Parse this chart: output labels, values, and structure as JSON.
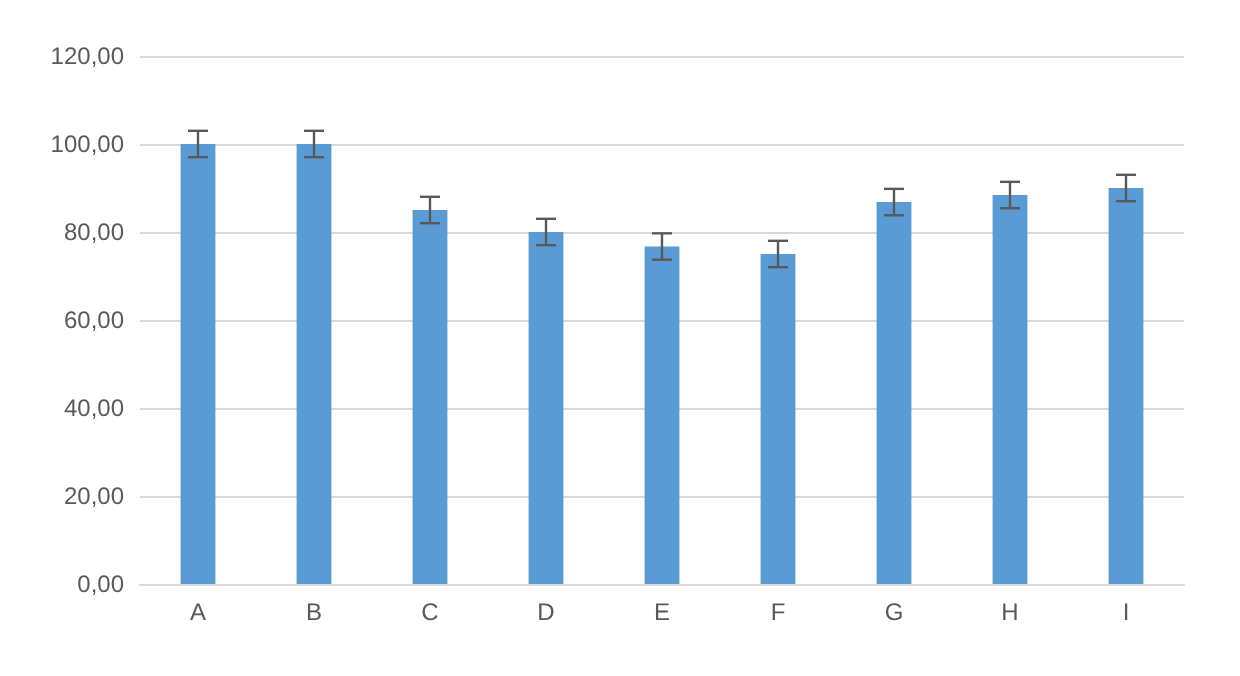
{
  "chart_data": {
    "type": "bar",
    "categories": [
      "A",
      "B",
      "C",
      "D",
      "E",
      "F",
      "G",
      "H",
      "I"
    ],
    "values": [
      100,
      100,
      85,
      80,
      76.7,
      75,
      86.8,
      88.4,
      90
    ],
    "errors": [
      3,
      3,
      3,
      3,
      3,
      3,
      3,
      3,
      3
    ],
    "color": "#5b9bd5",
    "ylim": [
      0,
      120
    ],
    "yticks": [
      {
        "value": 0,
        "label": "0,00"
      },
      {
        "value": 20,
        "label": "20,00"
      },
      {
        "value": 40,
        "label": "40,00"
      },
      {
        "value": 60,
        "label": "60,00"
      },
      {
        "value": 80,
        "label": "80,00"
      },
      {
        "value": 100,
        "label": "100,00"
      },
      {
        "value": 120,
        "label": "120,00"
      }
    ],
    "grid": true
  }
}
